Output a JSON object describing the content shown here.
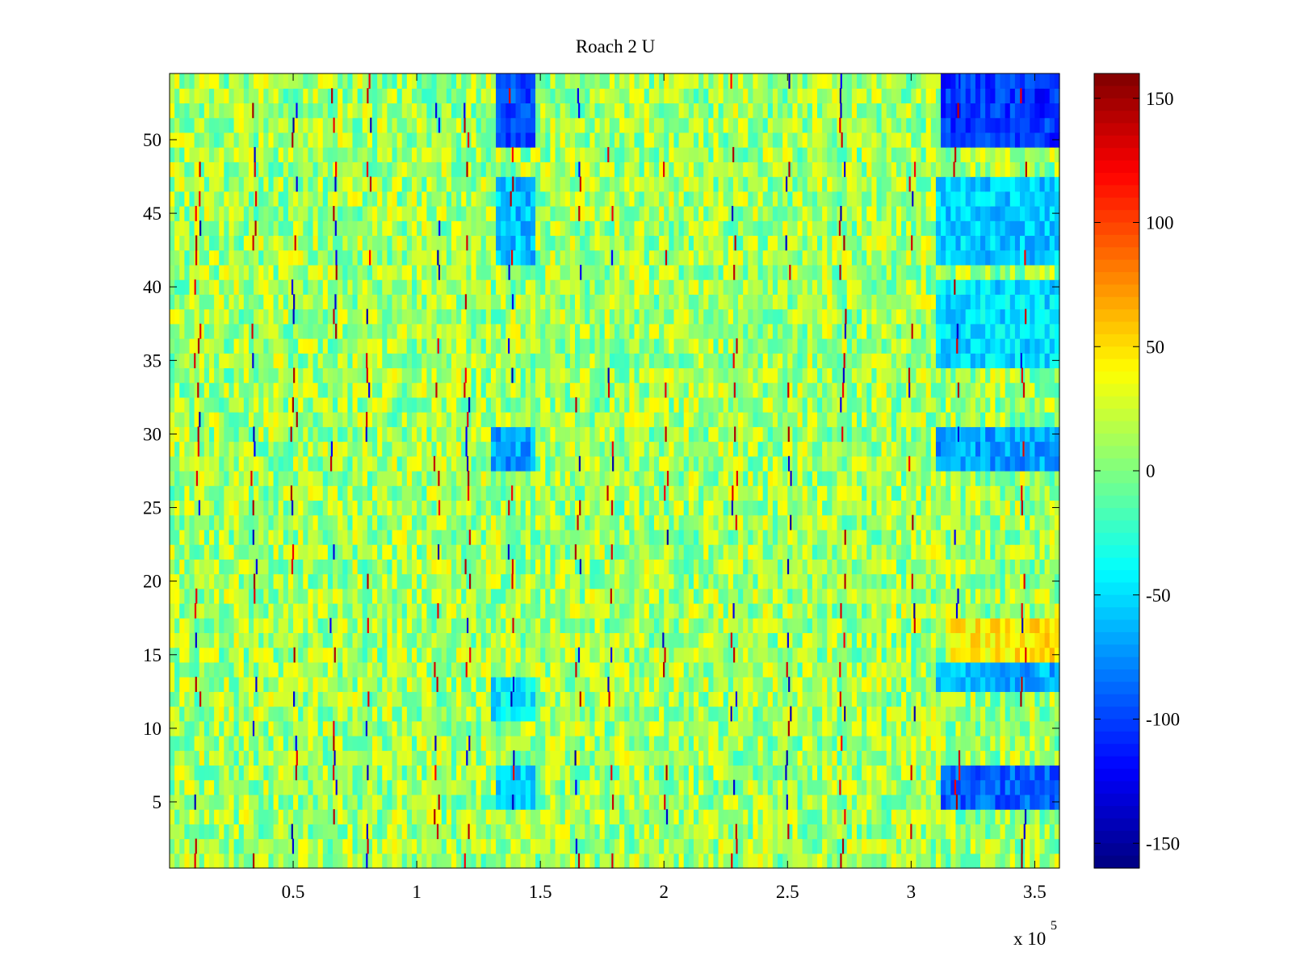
{
  "chart_data": {
    "type": "heatmap",
    "title": "Roach 2 U",
    "xlabel": "",
    "ylabel": "",
    "x_exponent_label": "x 10",
    "x_exponent_power": "5",
    "xlim": [
      0,
      360000
    ],
    "ylim": [
      0.5,
      54.5
    ],
    "x_ticks": [
      50000,
      100000,
      150000,
      200000,
      250000,
      300000,
      350000
    ],
    "x_tick_labels": [
      "0.5",
      "1",
      "1.5",
      "2",
      "2.5",
      "3",
      "3.5"
    ],
    "y_ticks": [
      5,
      10,
      15,
      20,
      25,
      30,
      35,
      40,
      45,
      50
    ],
    "y_tick_labels": [
      "5",
      "10",
      "15",
      "20",
      "25",
      "30",
      "35",
      "40",
      "45",
      "50"
    ],
    "rows": 54,
    "colormap": "jet",
    "clim": [
      -160,
      160
    ],
    "colorbar_ticks": [
      150,
      100,
      50,
      0,
      -50,
      -100,
      -150
    ],
    "colorbar_tick_labels": [
      "150",
      "100",
      "50",
      "0",
      "-50",
      "-100",
      "-150"
    ],
    "typical_value": 10,
    "regions": [
      {
        "description": "low (blue) band",
        "x_range": [
          133000,
          148000
        ],
        "y_range": [
          50,
          54
        ],
        "value": -95
      },
      {
        "description": "low (blue) band",
        "x_range": [
          313000,
          360000
        ],
        "y_range": [
          50,
          54
        ],
        "value": -105
      },
      {
        "description": "low (blue) band",
        "x_range": [
          133000,
          148000
        ],
        "y_range": [
          42,
          47
        ],
        "value": -60
      },
      {
        "description": "low (blue) band",
        "x_range": [
          310000,
          360000
        ],
        "y_range": [
          42,
          47
        ],
        "value": -55
      },
      {
        "description": "low (blue) band",
        "x_range": [
          310000,
          360000
        ],
        "y_range": [
          35,
          40
        ],
        "value": -50
      },
      {
        "description": "low (blue) band",
        "x_range": [
          130000,
          148000
        ],
        "y_range": [
          28,
          30
        ],
        "value": -70
      },
      {
        "description": "low (blue) band",
        "x_range": [
          310000,
          360000
        ],
        "y_range": [
          28,
          30
        ],
        "value": -70
      },
      {
        "description": "high (yellow) band",
        "x_range": [
          315000,
          360000
        ],
        "y_range": [
          15,
          17
        ],
        "value": 45
      },
      {
        "description": "low (blue) band",
        "x_range": [
          310000,
          360000
        ],
        "y_range": [
          13,
          14
        ],
        "value": -65
      },
      {
        "description": "low (blue) band",
        "x_range": [
          130000,
          148000
        ],
        "y_range": [
          11,
          13
        ],
        "value": -45
      },
      {
        "description": "low (blue) band",
        "x_range": [
          313000,
          360000
        ],
        "y_range": [
          5,
          7
        ],
        "value": -90
      },
      {
        "description": "low (blue) band",
        "x_range": [
          133000,
          148000
        ],
        "y_range": [
          5,
          7
        ],
        "value": -55
      }
    ],
    "spike_positions_x": [
      11000,
      34000,
      50000,
      66000,
      80000,
      108000,
      120000,
      138000,
      165000,
      178000,
      200000,
      228000,
      250000,
      272000,
      300000,
      318000,
      345000
    ]
  }
}
